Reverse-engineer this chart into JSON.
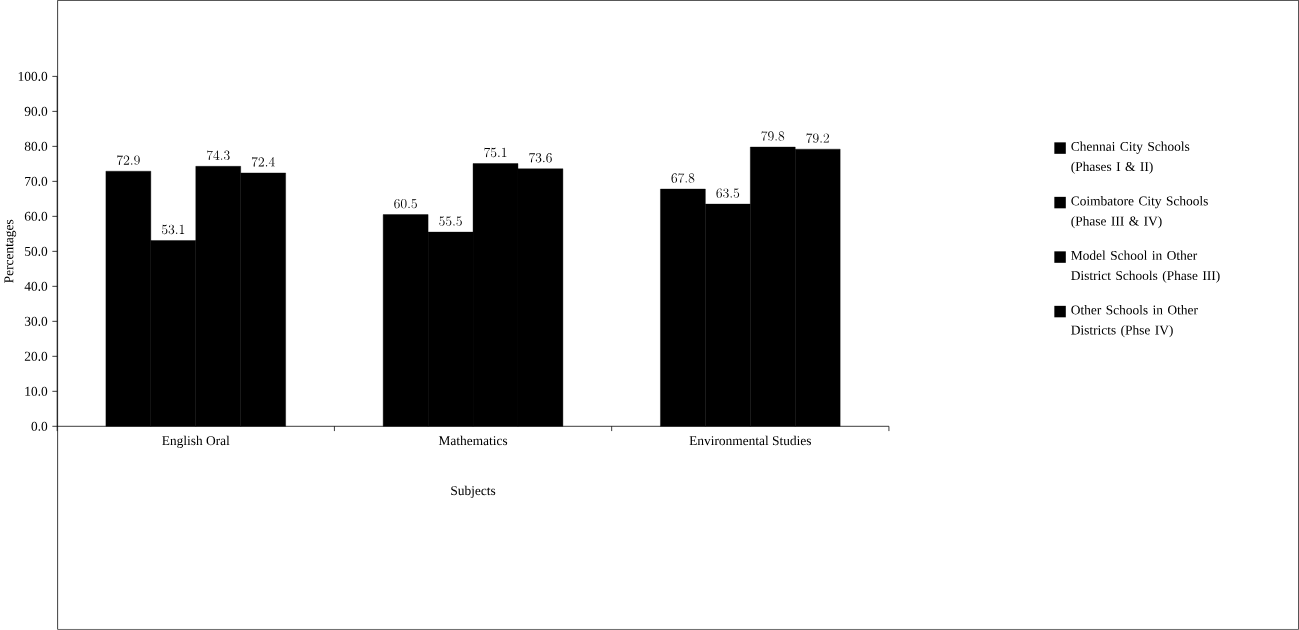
{
  "chart_data": {
    "type": "bar",
    "xlabel": "Subjects",
    "ylabel": "Percentages",
    "categories": [
      "English Oral",
      "Mathematics",
      "Environmental Studies"
    ],
    "series": [
      {
        "name": "Chennai City Schools (Phases I & II)",
        "color": "#000000",
        "values": [
          72.9,
          60.5,
          67.8
        ]
      },
      {
        "name": "Coimbatore City Schools (Phase III & IV)",
        "color": "#000000",
        "values": [
          53.1,
          55.5,
          63.5
        ]
      },
      {
        "name": "Model School in Other District Schools (Phase III)",
        "color": "#000000",
        "values": [
          74.3,
          75.1,
          79.8
        ]
      },
      {
        "name": "Other Schools in Other Districts (Phse IV)",
        "color": "#000000",
        "values": [
          72.4,
          73.6,
          79.2
        ]
      }
    ],
    "ylim": [
      0,
      100
    ],
    "yticks": [
      {
        "value": 0,
        "label": "0.0"
      },
      {
        "value": 10,
        "label": "10.0"
      },
      {
        "value": 20,
        "label": "20.0"
      },
      {
        "value": 30,
        "label": "30.0"
      },
      {
        "value": 40,
        "label": "40.0"
      },
      {
        "value": 50,
        "label": "50.0"
      },
      {
        "value": 60,
        "label": "60.0"
      },
      {
        "value": 70,
        "label": "70.0"
      },
      {
        "value": 80,
        "label": "80.0"
      },
      {
        "value": 90,
        "label": "90.0"
      },
      {
        "value": 100,
        "label": "100.0"
      }
    ],
    "data_labels": true,
    "legend": "right",
    "grid": false
  }
}
